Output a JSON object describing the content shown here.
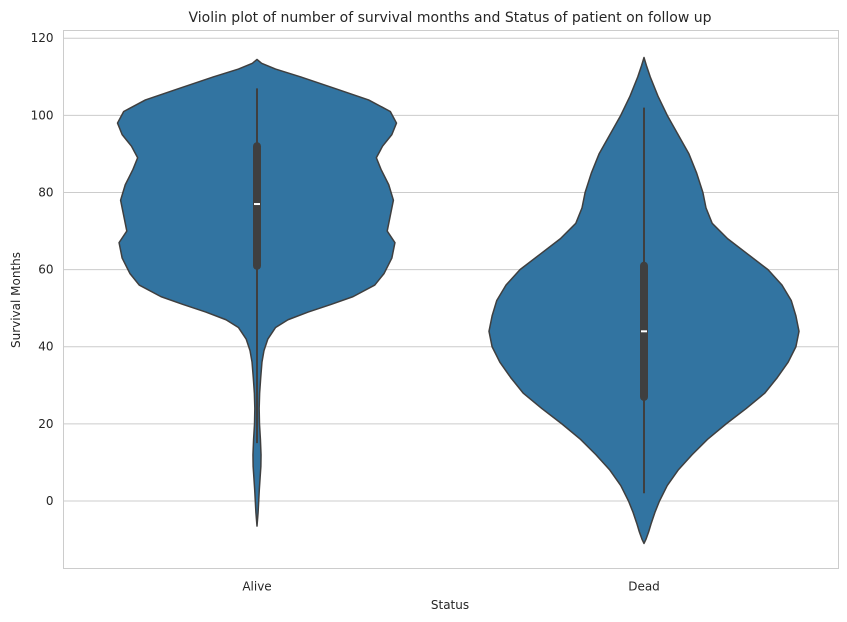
{
  "chart_data": {
    "type": "violin",
    "title": "Violin plot of number of survival months and Status of patient on follow up",
    "xlabel": "Status",
    "ylabel": "Survival Months",
    "categories": [
      "Alive",
      "Dead"
    ],
    "ylim": [
      -17.5,
      122
    ],
    "yticks": [
      0,
      20,
      40,
      60,
      80,
      100,
      120
    ],
    "grid": "horizontal",
    "fill_color": "#3274a1",
    "edge_color": "#3f3f3f",
    "violins": [
      {
        "category": "Alive",
        "kde_min": -6.5,
        "kde_max": 114.5,
        "whisker_low": 15,
        "q1": 61,
        "median": 77,
        "q3": 92,
        "whisker_high": 107,
        "density_profile": [
          [
            114.5,
            0.0
          ],
          [
            113.5,
            0.03
          ],
          [
            112,
            0.12
          ],
          [
            110,
            0.28
          ],
          [
            107,
            0.5
          ],
          [
            104,
            0.72
          ],
          [
            101,
            0.86
          ],
          [
            98,
            0.9
          ],
          [
            95,
            0.87
          ],
          [
            92,
            0.81
          ],
          [
            89,
            0.77
          ],
          [
            86,
            0.8
          ],
          [
            82,
            0.85
          ],
          [
            78,
            0.88
          ],
          [
            74,
            0.86
          ],
          [
            70,
            0.84
          ],
          [
            67,
            0.89
          ],
          [
            63,
            0.87
          ],
          [
            59,
            0.82
          ],
          [
            56,
            0.76
          ],
          [
            53,
            0.62
          ],
          [
            51,
            0.48
          ],
          [
            49,
            0.33
          ],
          [
            47,
            0.2
          ],
          [
            45,
            0.12
          ],
          [
            42,
            0.07
          ],
          [
            39,
            0.045
          ],
          [
            36,
            0.032
          ],
          [
            32,
            0.024
          ],
          [
            28,
            0.017
          ],
          [
            24,
            0.014
          ],
          [
            20,
            0.016
          ],
          [
            16,
            0.022
          ],
          [
            12,
            0.026
          ],
          [
            9,
            0.025
          ],
          [
            6,
            0.02
          ],
          [
            3,
            0.015
          ],
          [
            0,
            0.011
          ],
          [
            -3,
            0.007
          ],
          [
            -5,
            0.003
          ],
          [
            -6.5,
            0.0
          ]
        ]
      },
      {
        "category": "Dead",
        "kde_min": -11,
        "kde_max": 115,
        "whisker_low": 2,
        "q1": 27,
        "median": 44,
        "q3": 61,
        "whisker_high": 102,
        "density_profile": [
          [
            115,
            0.0
          ],
          [
            113,
            0.015
          ],
          [
            110,
            0.04
          ],
          [
            105,
            0.09
          ],
          [
            100,
            0.15
          ],
          [
            95,
            0.22
          ],
          [
            90,
            0.29
          ],
          [
            85,
            0.34
          ],
          [
            80,
            0.38
          ],
          [
            76,
            0.4
          ],
          [
            72,
            0.44
          ],
          [
            68,
            0.54
          ],
          [
            64,
            0.67
          ],
          [
            60,
            0.8
          ],
          [
            56,
            0.89
          ],
          [
            52,
            0.95
          ],
          [
            48,
            0.98
          ],
          [
            44,
            1.0
          ],
          [
            40,
            0.98
          ],
          [
            36,
            0.93
          ],
          [
            32,
            0.86
          ],
          [
            28,
            0.78
          ],
          [
            24,
            0.66
          ],
          [
            20,
            0.53
          ],
          [
            16,
            0.41
          ],
          [
            12,
            0.31
          ],
          [
            8,
            0.22
          ],
          [
            4,
            0.15
          ],
          [
            0,
            0.1
          ],
          [
            -3,
            0.07
          ],
          [
            -6,
            0.045
          ],
          [
            -8,
            0.03
          ],
          [
            -10,
            0.012
          ],
          [
            -11,
            0.0
          ]
        ]
      }
    ]
  }
}
